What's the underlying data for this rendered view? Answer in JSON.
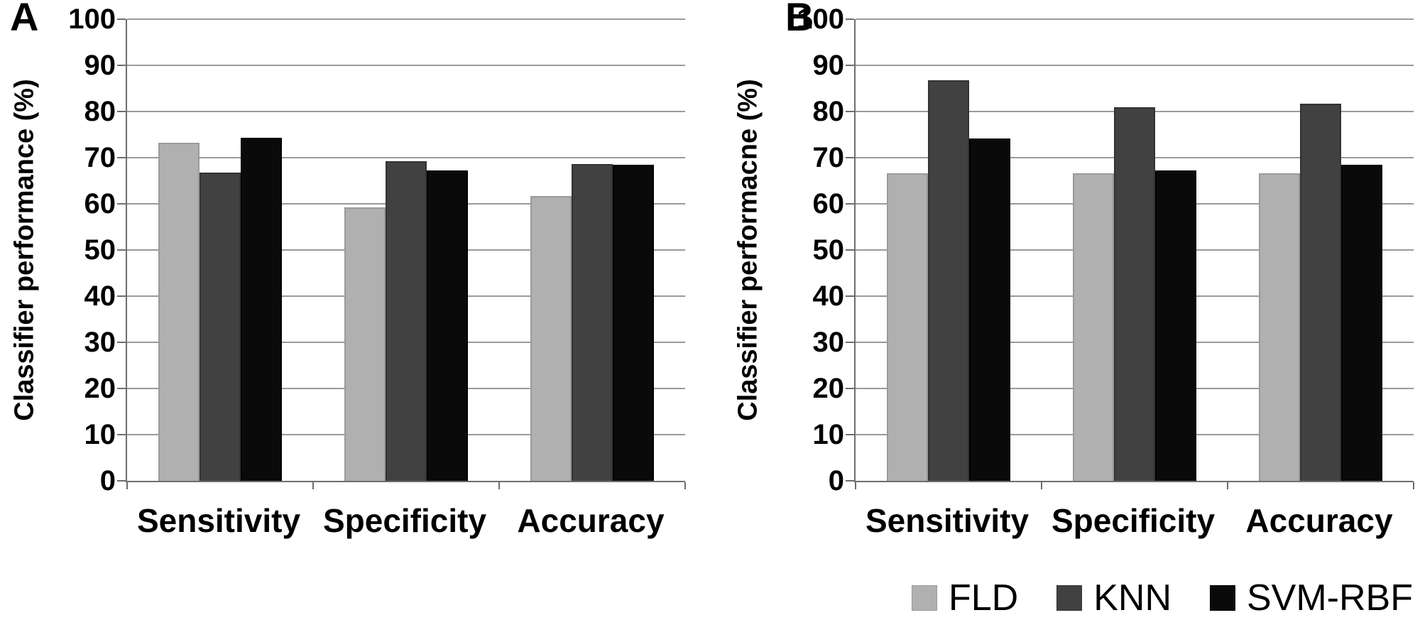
{
  "panels": [
    {
      "letter": "A"
    },
    {
      "letter": "B"
    }
  ],
  "legend": {
    "position": "bottom-right",
    "items": [
      {
        "label": "FLD",
        "color": "#b0b0b0",
        "border": "#9a9a9a"
      },
      {
        "label": "KNN",
        "color": "#414141",
        "border": "#333333"
      },
      {
        "label": "SVM-RBF",
        "color": "#0a0a0a",
        "border": "#000000"
      }
    ]
  },
  "chart_data": [
    {
      "panel": "A",
      "type": "bar",
      "title": "",
      "xlabel": "",
      "ylabel": "Classifier performance (%)",
      "ylim": [
        0,
        100
      ],
      "ytick_step": 10,
      "yticks": [
        0,
        10,
        20,
        30,
        40,
        50,
        60,
        70,
        80,
        90,
        100
      ],
      "grid": true,
      "legend": "shared-bottom-right",
      "categories": [
        "Sensitivity",
        "Specificity",
        "Accuracy"
      ],
      "series": [
        {
          "name": "FLD",
          "color": "#b0b0b0",
          "border": "#9a9a9a",
          "values": [
            73.2,
            59.3,
            61.7
          ]
        },
        {
          "name": "KNN",
          "color": "#414141",
          "border": "#333333",
          "values": [
            66.7,
            69.2,
            68.6
          ]
        },
        {
          "name": "SVM-RBF",
          "color": "#0a0a0a",
          "border": "#000000",
          "values": [
            74.3,
            67.3,
            68.5
          ]
        }
      ]
    },
    {
      "panel": "B",
      "type": "bar",
      "title": "",
      "xlabel": "",
      "ylabel": "Classifier performacne (%)",
      "ylim": [
        0,
        100
      ],
      "ytick_step": 10,
      "yticks": [
        0,
        10,
        20,
        30,
        40,
        50,
        60,
        70,
        80,
        90,
        100
      ],
      "grid": true,
      "legend": "shared-bottom-right",
      "categories": [
        "Sensitivity",
        "Specificity",
        "Accuracy"
      ],
      "series": [
        {
          "name": "FLD",
          "color": "#b0b0b0",
          "border": "#9a9a9a",
          "values": [
            66.6,
            66.6,
            66.6
          ]
        },
        {
          "name": "KNN",
          "color": "#414141",
          "border": "#333333",
          "values": [
            86.8,
            80.9,
            81.7
          ]
        },
        {
          "name": "SVM-RBF",
          "color": "#0a0a0a",
          "border": "#000000",
          "values": [
            74.2,
            67.3,
            68.5
          ]
        }
      ]
    }
  ]
}
